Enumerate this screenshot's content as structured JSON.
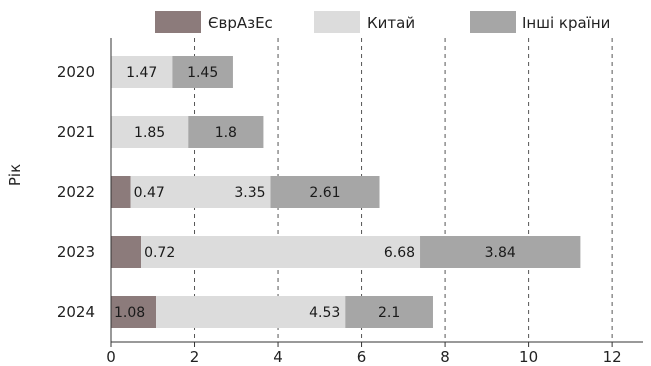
{
  "chart_data": {
    "type": "bar",
    "orientation": "horizontal",
    "stacked": true,
    "categories": [
      "2020",
      "2021",
      "2022",
      "2023",
      "2024"
    ],
    "series": [
      {
        "name": "ЄврАзЕс",
        "color": "#8c7b7b",
        "values": [
          0,
          0,
          0.47,
          0.72,
          1.08
        ],
        "labels": [
          "",
          "",
          "0.47",
          "0.72",
          "1.08"
        ]
      },
      {
        "name": "Китай",
        "color": "#dcdcdc",
        "values": [
          1.47,
          1.85,
          3.35,
          6.68,
          4.53
        ],
        "labels": [
          "1.47",
          "1.85",
          "3.35",
          "6.68",
          "4.53"
        ]
      },
      {
        "name": "Інші країни",
        "color": "#a6a6a6",
        "values": [
          1.45,
          1.8,
          2.61,
          3.84,
          2.1
        ],
        "labels": [
          "1.45",
          "1.8",
          "2.61",
          "3.84",
          "2.1"
        ]
      }
    ],
    "xlabel": "",
    "ylabel": "Рік",
    "xlim": [
      0,
      12.5
    ],
    "xticks": [
      0,
      2,
      4,
      6,
      8,
      10,
      12
    ],
    "grid": "vertical-dashed",
    "legend_position": "top"
  }
}
